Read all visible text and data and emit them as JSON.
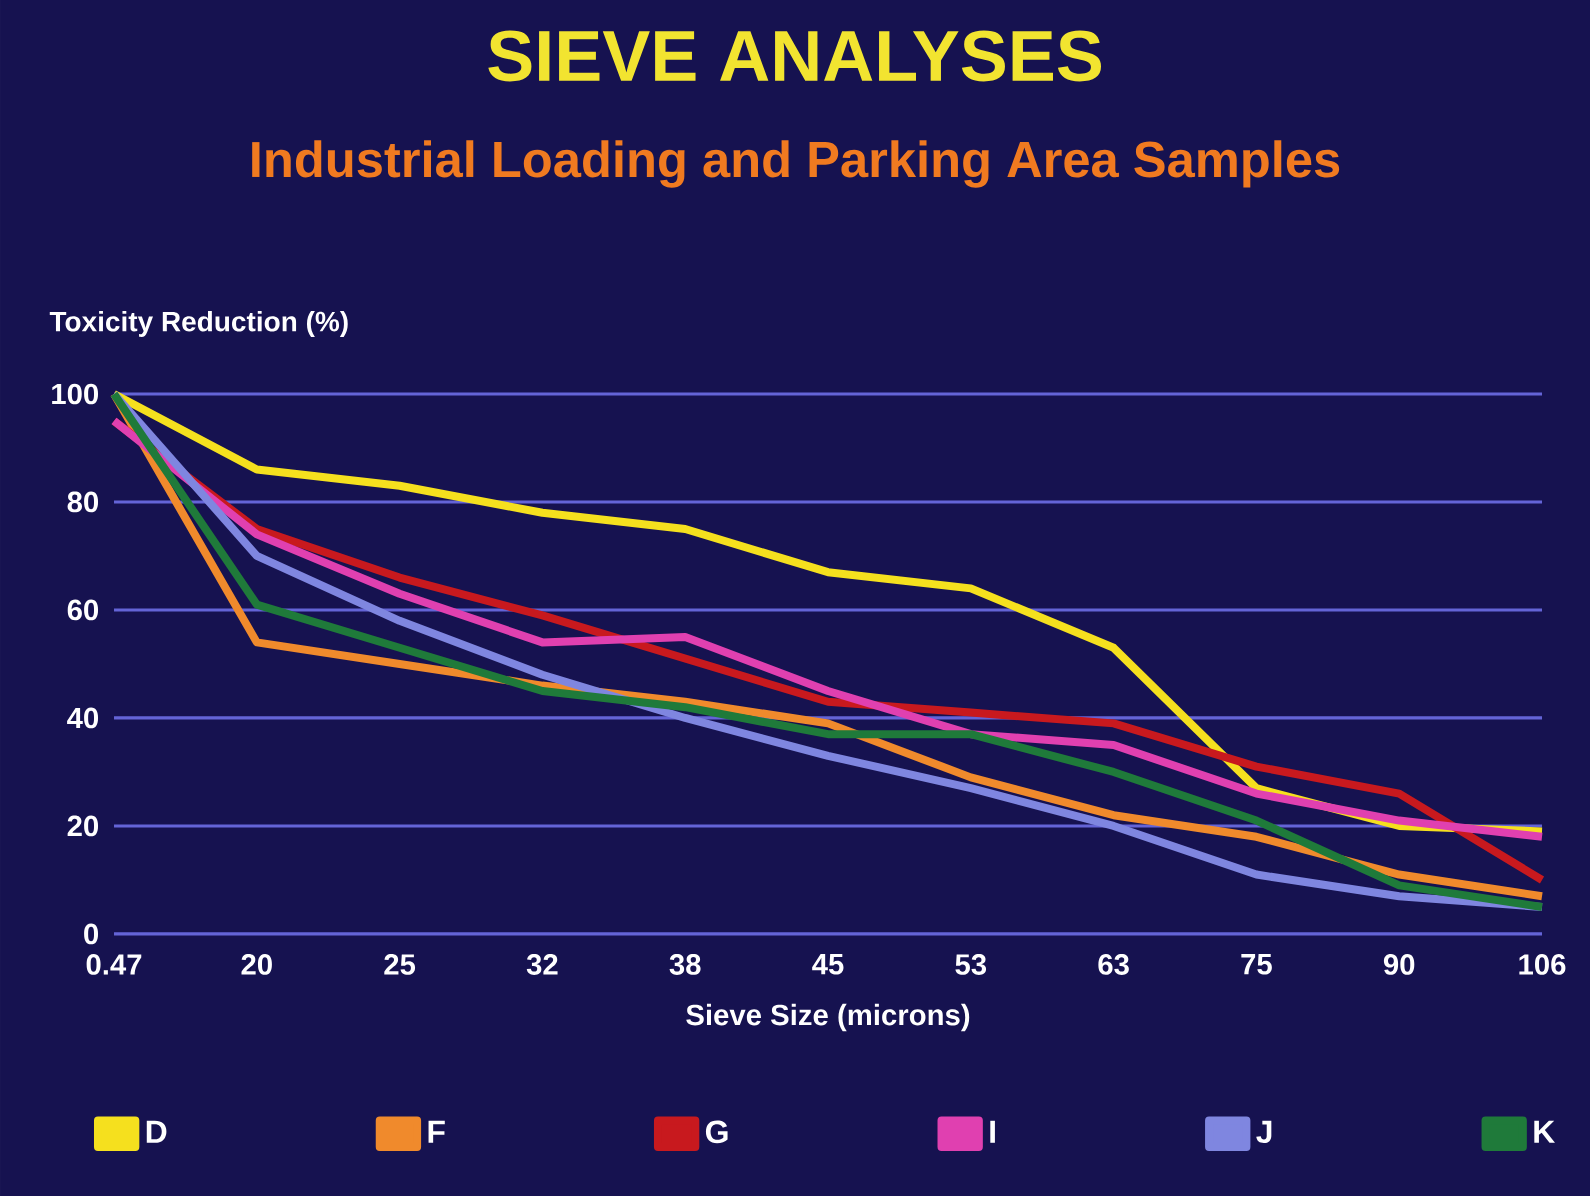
{
  "chart_data": {
    "type": "line",
    "title": "SIEVE ANALYSES",
    "subtitle": "Industrial Loading and Parking Area Samples",
    "xlabel": "Sieve Size (microns)",
    "ylabel": "Toxicity Reduction (%)",
    "categories": [
      "0.47",
      "20",
      "25",
      "32",
      "38",
      "45",
      "53",
      "63",
      "75",
      "90",
      "106"
    ],
    "series": [
      {
        "name": "D",
        "color": "#f5e01e",
        "values": [
          100,
          86,
          83,
          78,
          75,
          67,
          64,
          53,
          27,
          20,
          19
        ]
      },
      {
        "name": "F",
        "color": "#f08a2c",
        "values": [
          100,
          54,
          50,
          46,
          43,
          39,
          29,
          22,
          18,
          11,
          7
        ]
      },
      {
        "name": "G",
        "color": "#c8191e",
        "values": [
          95,
          75,
          66,
          59,
          51,
          43,
          41,
          39,
          31,
          26,
          10
        ]
      },
      {
        "name": "I",
        "color": "#e040b0",
        "values": [
          95,
          74,
          63,
          54,
          55,
          45,
          37,
          35,
          26,
          21,
          18
        ]
      },
      {
        "name": "J",
        "color": "#7f86e0",
        "values": [
          100,
          70,
          58,
          48,
          40,
          33,
          27,
          20,
          11,
          7,
          5
        ]
      },
      {
        "name": "K",
        "color": "#1f7a3a",
        "values": [
          100,
          61,
          53,
          45,
          42,
          37,
          37,
          30,
          21,
          9,
          5
        ]
      }
    ],
    "ylim": [
      0,
      100
    ],
    "yticks": [
      0,
      20,
      40,
      60,
      80,
      100
    ],
    "grid": "y",
    "legend": "bottom",
    "marker": "none",
    "line_style": "solid"
  }
}
